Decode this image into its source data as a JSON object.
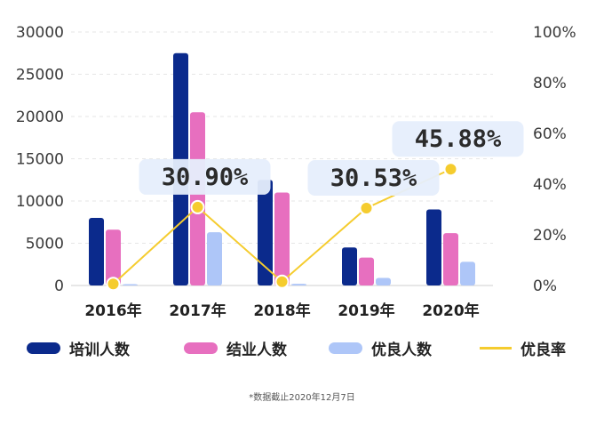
{
  "chart_data": {
    "type": "bar",
    "categories": [
      "2016年",
      "2017年",
      "2018年",
      "2019年",
      "2020年"
    ],
    "series": [
      {
        "name": "培训人数",
        "type": "bar",
        "axis": "left",
        "color": "#0b2a8c",
        "values": [
          8000,
          27500,
          12500,
          4500,
          9000
        ]
      },
      {
        "name": "结业人数",
        "type": "bar",
        "axis": "left",
        "color": "#e76fbf",
        "values": [
          6600,
          20500,
          11000,
          3300,
          6200
        ]
      },
      {
        "name": "优良人数",
        "type": "bar",
        "axis": "left",
        "color": "#aec6f8",
        "values": [
          50,
          6300,
          200,
          900,
          2800
        ]
      },
      {
        "name": "优良率",
        "type": "line",
        "axis": "right",
        "color": "#f5cc2e",
        "values": [
          0.6,
          30.9,
          1.5,
          30.53,
          45.88
        ]
      }
    ],
    "y_left": {
      "ylim": [
        0,
        30000
      ],
      "ticks": [
        "0",
        "5000",
        "10000",
        "15000",
        "20000",
        "25000",
        "30000"
      ]
    },
    "y_right": {
      "ylim": [
        0,
        100
      ],
      "ticks": [
        "0%",
        "20%",
        "40%",
        "60%",
        "80%",
        "100%"
      ]
    },
    "annotations": [
      {
        "category": "2017年",
        "text": "30.90%"
      },
      {
        "category": "2019年",
        "text": "30.53%"
      },
      {
        "category": "2020年",
        "text": "45.88%"
      }
    ],
    "grid": true,
    "legend_position": "bottom"
  },
  "footnote": "*数据截止2020年12月7日"
}
